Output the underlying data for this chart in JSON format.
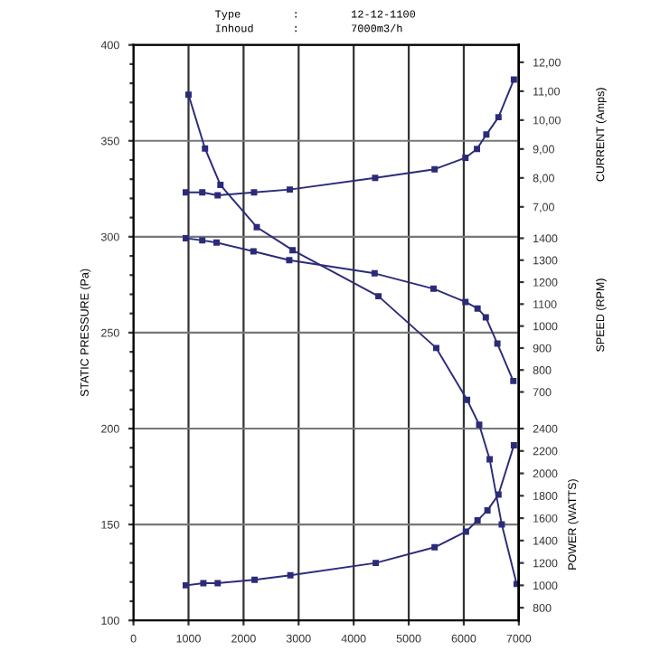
{
  "chart_data": [
    {
      "type": "line",
      "ylabel": "STATIC PRESSURE (Pa)",
      "y2label": "CURRENT (Amps)",
      "y3label": "SPEED (RPM)",
      "annotations": [
        "Type        :        12-12-1100",
        "Inhoud      :        7000m3/h"
      ],
      "xlim": [
        0,
        7000
      ],
      "xticks": [
        0,
        1000,
        2000,
        3000,
        4000,
        5000,
        6000,
        7000
      ],
      "ylim": [
        100,
        400
      ],
      "yticks": [
        100,
        {
          "value": 110,
          "label": null
        },
        {
          "value": 120,
          "label": null
        },
        {
          "value": 130,
          "label": null
        },
        {
          "value": 140,
          "label": null
        },
        150,
        {
          "value": 160,
          "label": null
        },
        {
          "value": 170,
          "label": null
        },
        {
          "value": 180,
          "label": null
        },
        {
          "value": 190,
          "label": null
        },
        200,
        {
          "value": 210,
          "label": null
        },
        {
          "value": 220,
          "label": null
        },
        {
          "value": 230,
          "label": null
        },
        {
          "value": 240,
          "label": null
        },
        250,
        {
          "value": 260,
          "label": null
        },
        {
          "value": 270,
          "label": null
        },
        {
          "value": 280,
          "label": null
        },
        {
          "value": 290,
          "label": null
        },
        300,
        {
          "value": 310,
          "label": null
        },
        {
          "value": 320,
          "label": null
        },
        {
          "value": 330,
          "label": null
        },
        {
          "value": 340,
          "label": null
        },
        350,
        {
          "value": 360,
          "label": null
        },
        {
          "value": 370,
          "label": null
        },
        {
          "value": 380,
          "label": null
        },
        {
          "value": 390,
          "label": null
        },
        400
      ],
      "y2lim": [
        -7.3,
        12.6
      ],
      "y2ticks": [
        {
          "value": 7,
          "label": "7,00"
        },
        {
          "value": 8,
          "label": "8,00"
        },
        {
          "value": 9,
          "label": "9,00"
        },
        {
          "value": 10,
          "label": "10,00"
        },
        {
          "value": 11,
          "label": "11,00"
        },
        {
          "value": 12,
          "label": "12,00"
        }
      ],
      "y3lim": [
        -340,
        2280
      ],
      "y3ticks": [
        700,
        800,
        900,
        1000,
        1100,
        1200,
        1300,
        1400
      ],
      "grid": true,
      "marker": "square",
      "line_style": "solid",
      "series": [
        {
          "color": "#2b2b7a",
          "x": [
            1000,
            1300,
            1580,
            2240,
            2890,
            4450,
            5500,
            6060,
            6280,
            6470,
            6690,
            6960
          ],
          "values": [
            374,
            346,
            327,
            305,
            293,
            269,
            242,
            215,
            202,
            184,
            150,
            119
          ]
        },
        {
          "color": "#2b2b7a",
          "axis": "y2",
          "x": [
            950,
            1250,
            1530,
            2190,
            2840,
            4390,
            5470,
            6030,
            6240,
            6410,
            6630,
            6910
          ],
          "values": [
            7.5,
            7.5,
            7.4,
            7.5,
            7.6,
            8.0,
            8.3,
            8.7,
            9.0,
            9.5,
            10.1,
            11.4
          ]
        },
        {
          "color": "#2b2b7a",
          "axis": "y3",
          "x": [
            950,
            1250,
            1510,
            2180,
            2830,
            4380,
            5450,
            6030,
            6250,
            6400,
            6610,
            6900
          ],
          "values": [
            1400,
            1390,
            1380,
            1340,
            1300,
            1240,
            1170,
            1110,
            1080,
            1040,
            920,
            750
          ]
        }
      ]
    },
    {
      "type": "line",
      "ylabel": "POWER (WATTS)",
      "tick_labels": "y",
      "marker": "square",
      "line_style": "solid",
      "xlim": [
        0,
        7000
      ],
      "ylim": [
        687,
        2400
      ],
      "yticks": [
        800,
        1000,
        1200,
        1400,
        1600,
        1800,
        2000,
        2200,
        2400
      ],
      "series": [
        {
          "color": "#2b2b7a",
          "x": [
            950,
            1270,
            1530,
            2200,
            2850,
            4400,
            5470,
            6040,
            6250,
            6430,
            6630,
            6910
          ],
          "values": [
            1000,
            1020,
            1020,
            1050,
            1090,
            1200,
            1340,
            1480,
            1580,
            1670,
            1810,
            2250
          ]
        }
      ]
    }
  ]
}
